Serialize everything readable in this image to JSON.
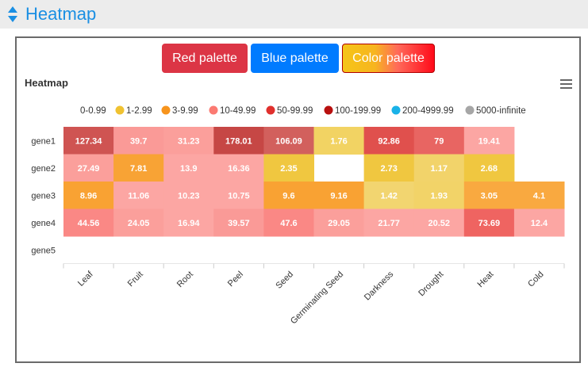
{
  "header": {
    "title": "Heatmap",
    "icon": "sort-toggle-icon"
  },
  "buttons": {
    "red": "Red palette",
    "blue": "Blue palette",
    "color": "Color palette"
  },
  "chart": {
    "title": "Heatmap",
    "menu_icon": "hamburger-menu-icon"
  },
  "chart_data": {
    "type": "heatmap",
    "title": "Heatmap",
    "x_categories": [
      "Leaf",
      "Fruit",
      "Root",
      "Peel",
      "Seed",
      "Germinating Seed",
      "Darkness",
      "Drought",
      "Heat",
      "Cold"
    ],
    "y_categories": [
      "gene1",
      "gene2",
      "gene3",
      "gene4",
      "gene5"
    ],
    "legend": [
      {
        "label": "0-0.99",
        "color": "#ffffff"
      },
      {
        "label": "1-2.99",
        "color": "#f0c231"
      },
      {
        "label": "3-9.99",
        "color": "#f7941d"
      },
      {
        "label": "10-49.99",
        "color": "#fb7a72"
      },
      {
        "label": "50-99.99",
        "color": "#e0302d"
      },
      {
        "label": "100-199.99",
        "color": "#b8100f"
      },
      {
        "label": "200-4999.99",
        "color": "#1ab2e8"
      },
      {
        "label": "5000-infinite",
        "color": "#a6a6a6"
      }
    ],
    "legend_placement": "top",
    "values": [
      [
        "127.34",
        "39.7",
        "31.23",
        "178.01",
        "106.09",
        "1.76",
        "92.86",
        "79",
        "19.41",
        ""
      ],
      [
        "27.49",
        "7.81",
        "13.9",
        "16.36",
        "2.35",
        "",
        "2.73",
        "1.17",
        "2.68",
        ""
      ],
      [
        "8.96",
        "11.06",
        "10.23",
        "10.75",
        "9.6",
        "9.16",
        "1.42",
        "1.93",
        "3.05",
        "4.1"
      ],
      [
        "44.56",
        "24.05",
        "16.94",
        "39.57",
        "47.6",
        "29.05",
        "21.77",
        "20.52",
        "73.69",
        "12.4"
      ],
      [
        "",
        "",
        "",
        "",
        "",
        "",
        "",
        "",
        "",
        ""
      ]
    ],
    "cell_colors": [
      [
        "#cf5452",
        "#fa9a97",
        "#fb9f9b",
        "#c64745",
        "#d2605d",
        "#f2d363",
        "#e0504d",
        "#e86562",
        "#fca6a3",
        null
      ],
      [
        "#fb9f9b",
        "#f8a335",
        "#fca6a3",
        "#fca6a3",
        "#f0c740",
        null,
        "#f0c740",
        "#f2d36a",
        "#f0c740",
        null
      ],
      [
        "#f9a233",
        "#fca6a3",
        "#fca6a3",
        "#fca6a3",
        "#f9a233",
        "#f9a233",
        "#f2d570",
        "#f2d368",
        "#f9a940",
        "#f9a940"
      ],
      [
        "#fa8885",
        "#fb9f9b",
        "#fca6a3",
        "#fa9a97",
        "#fa8885",
        "#fb9f9b",
        "#fca6a3",
        "#fca6a3",
        "#ef6461",
        "#fca6a3"
      ],
      [
        null,
        null,
        null,
        null,
        null,
        null,
        null,
        null,
        null,
        null
      ]
    ],
    "grid": false
  }
}
